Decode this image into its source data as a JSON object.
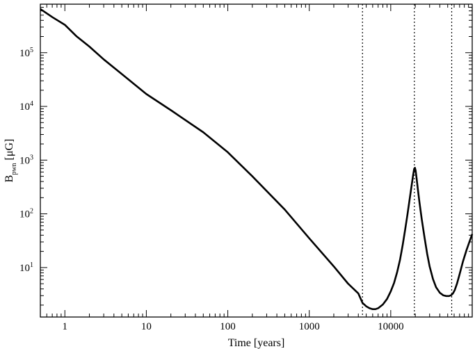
{
  "chart_data": {
    "type": "line",
    "title": "",
    "xlabel": "Time [years]",
    "ylabel": {
      "base": "B",
      "subscript": "pwn",
      "unit": "[μG]"
    },
    "x_scale": "log",
    "y_scale": "log",
    "xlim": [
      0.5,
      100000
    ],
    "ylim": [
      1.2,
      800000
    ],
    "grid": false,
    "legend": "none",
    "x_ticks": [
      {
        "value": 1,
        "label": "1"
      },
      {
        "value": 10,
        "label": "10"
      },
      {
        "value": 100,
        "label": "100"
      },
      {
        "value": 1000,
        "label": "1000"
      },
      {
        "value": 10000,
        "label": "10000"
      }
    ],
    "y_ticks": [
      {
        "value": 10,
        "base": "10",
        "exp": "1"
      },
      {
        "value": 100,
        "base": "10",
        "exp": "2"
      },
      {
        "value": 1000,
        "base": "10",
        "exp": "3"
      },
      {
        "value": 10000,
        "base": "10",
        "exp": "4"
      },
      {
        "value": 100000,
        "base": "10",
        "exp": "5"
      }
    ],
    "vertical_lines": [
      4500,
      19500,
      56000
    ],
    "series": [
      {
        "color": "#000000",
        "x": [
          0.5,
          0.7,
          1.0,
          1.4,
          2.0,
          3,
          5,
          10,
          20,
          50,
          100,
          200,
          500,
          1000,
          2000,
          3000,
          4000,
          4500,
          5000,
          5500,
          6000,
          6500,
          7000,
          8000,
          9000,
          10000,
          11000,
          12000,
          13000,
          14000,
          15000,
          16000,
          17000,
          18000,
          18800,
          19400,
          19800,
          20200,
          20800,
          21500,
          22500,
          24000,
          26000,
          28000,
          30000,
          33000,
          36000,
          40000,
          44000,
          48000,
          52000,
          55000,
          58000,
          61000,
          65000,
          70000,
          77000,
          85000,
          93000,
          100000
        ],
        "y": [
          650000,
          460000,
          330000,
          200000,
          130000,
          75000,
          40000,
          17000,
          8500,
          3300,
          1400,
          500,
          120,
          35,
          10.5,
          5.0,
          3.3,
          2.2,
          1.9,
          1.75,
          1.68,
          1.68,
          1.75,
          2.05,
          2.6,
          3.6,
          5.2,
          8.3,
          14,
          26,
          50,
          95,
          180,
          330,
          520,
          690,
          720,
          640,
          450,
          290,
          165,
          80,
          36,
          18,
          10.5,
          6.1,
          4.3,
          3.4,
          3.05,
          2.95,
          2.95,
          3.05,
          3.3,
          3.8,
          5.0,
          7.5,
          13,
          21,
          31,
          42
        ]
      }
    ]
  }
}
